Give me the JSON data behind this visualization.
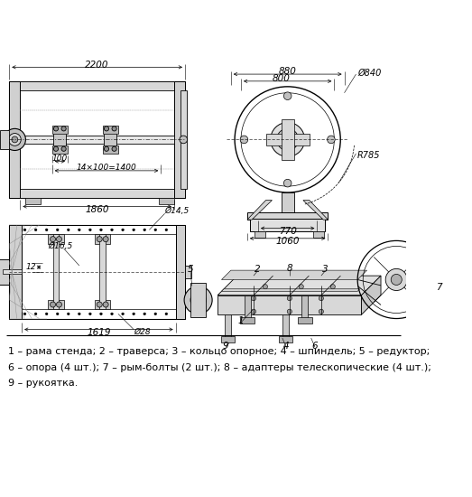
{
  "bg_color": "#ffffff",
  "line_color": "#000000",
  "text_color": "#000000",
  "legend_lines": [
    "1 – рама стенда; 2 – траверса; 3 – кольцо опорное; 4 – шпиндель; 5 – редуктор;",
    "6 – опора (4 шт.); 7 – рым-болты (2 шт.); 8 – адаптеры телескопические (4 шт.);",
    "9 – рукоятка."
  ],
  "dim_2200": "2200",
  "dim_100": "100",
  "dim_14x100": "14×100=1400",
  "dim_1860": "1860",
  "dim_880": "880",
  "dim_800": "800",
  "dim_phi840": "Ø840",
  "dim_R785": "R785",
  "dim_770": "770",
  "dim_1060": "1060",
  "dim_phi14": "Ø14,5",
  "dim_phi16": "Ø16,5",
  "dim_12": "12",
  "dim_phi28": "Ø28",
  "dim_1619": "1619"
}
